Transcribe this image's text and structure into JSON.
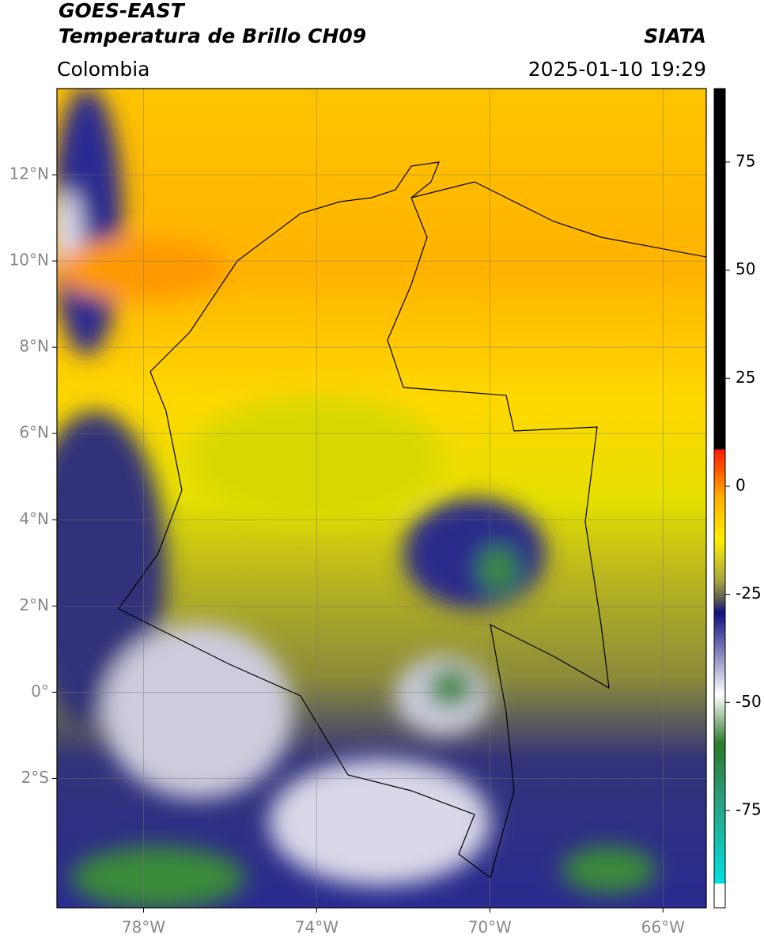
{
  "header": {
    "title": "GOES-EAST",
    "subtitle": "Temperatura de Brillo CH09",
    "source": "SIATA",
    "region": "Colombia",
    "datetime": "2025-01-10 19:29"
  },
  "map": {
    "xlim": [
      -80,
      -65
    ],
    "ylim": [
      -5,
      14
    ],
    "xticks": [
      {
        "value": -78,
        "label": "78°W"
      },
      {
        "value": -74,
        "label": "74°W"
      },
      {
        "value": -70,
        "label": "70°W"
      },
      {
        "value": -66,
        "label": "66°W"
      }
    ],
    "yticks": [
      {
        "value": 12,
        "label": "12°N"
      },
      {
        "value": 10,
        "label": "10°N"
      },
      {
        "value": 8,
        "label": "8°N"
      },
      {
        "value": 6,
        "label": "6°N"
      },
      {
        "value": 4,
        "label": "4°N"
      },
      {
        "value": 2,
        "label": "2°N"
      },
      {
        "value": 0,
        "label": "0°"
      },
      {
        "value": -2,
        "label": "2°S"
      }
    ],
    "grid": true
  },
  "colorbar": {
    "lim": [
      -97.5,
      92
    ],
    "ticks": [
      75,
      50,
      25,
      0,
      -25,
      -50,
      -75
    ]
  }
}
